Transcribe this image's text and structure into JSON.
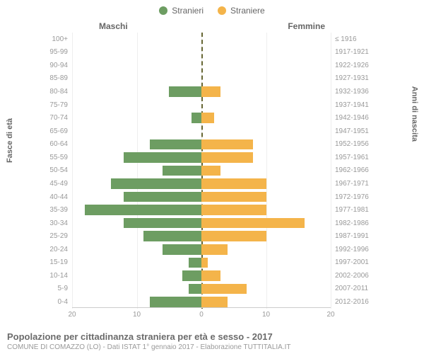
{
  "legend": {
    "male": "Stranieri",
    "female": "Straniere"
  },
  "headers": {
    "left": "Maschi",
    "right": "Femmine"
  },
  "axis_titles": {
    "left": "Fasce di età",
    "right": "Anni di nascita"
  },
  "colors": {
    "male": "#6d9d62",
    "female": "#f4b44a",
    "background": "#ffffff",
    "grid": "#eeeeee",
    "text_muted": "#999999",
    "text_header": "#666666",
    "center_line": "#666633"
  },
  "chart": {
    "type": "population-pyramid",
    "x_max": 20,
    "x_ticks": [
      20,
      10,
      0,
      10,
      20
    ],
    "bar_height_ratio": 0.78,
    "rows": [
      {
        "age": "100+",
        "birth": "≤ 1916",
        "m": 0,
        "f": 0
      },
      {
        "age": "95-99",
        "birth": "1917-1921",
        "m": 0,
        "f": 0
      },
      {
        "age": "90-94",
        "birth": "1922-1926",
        "m": 0,
        "f": 0
      },
      {
        "age": "85-89",
        "birth": "1927-1931",
        "m": 0,
        "f": 0
      },
      {
        "age": "80-84",
        "birth": "1932-1936",
        "m": 5,
        "f": 3
      },
      {
        "age": "75-79",
        "birth": "1937-1941",
        "m": 0,
        "f": 0
      },
      {
        "age": "70-74",
        "birth": "1942-1946",
        "m": 1.5,
        "f": 2
      },
      {
        "age": "65-69",
        "birth": "1947-1951",
        "m": 0,
        "f": 0
      },
      {
        "age": "60-64",
        "birth": "1952-1956",
        "m": 8,
        "f": 8
      },
      {
        "age": "55-59",
        "birth": "1957-1961",
        "m": 12,
        "f": 8
      },
      {
        "age": "50-54",
        "birth": "1962-1966",
        "m": 6,
        "f": 3
      },
      {
        "age": "45-49",
        "birth": "1967-1971",
        "m": 14,
        "f": 10
      },
      {
        "age": "40-44",
        "birth": "1972-1976",
        "m": 12,
        "f": 10
      },
      {
        "age": "35-39",
        "birth": "1977-1981",
        "m": 18,
        "f": 10
      },
      {
        "age": "30-34",
        "birth": "1982-1986",
        "m": 12,
        "f": 16
      },
      {
        "age": "25-29",
        "birth": "1987-1991",
        "m": 9,
        "f": 10
      },
      {
        "age": "20-24",
        "birth": "1992-1996",
        "m": 6,
        "f": 4
      },
      {
        "age": "15-19",
        "birth": "1997-2001",
        "m": 2,
        "f": 1
      },
      {
        "age": "10-14",
        "birth": "2002-2006",
        "m": 3,
        "f": 3
      },
      {
        "age": "5-9",
        "birth": "2007-2011",
        "m": 2,
        "f": 7
      },
      {
        "age": "0-4",
        "birth": "2012-2016",
        "m": 8,
        "f": 4
      }
    ]
  },
  "footer": {
    "title": "Popolazione per cittadinanza straniera per età e sesso - 2017",
    "subtitle": "COMUNE DI COMAZZO (LO) - Dati ISTAT 1° gennaio 2017 - Elaborazione TUTTITALIA.IT"
  }
}
